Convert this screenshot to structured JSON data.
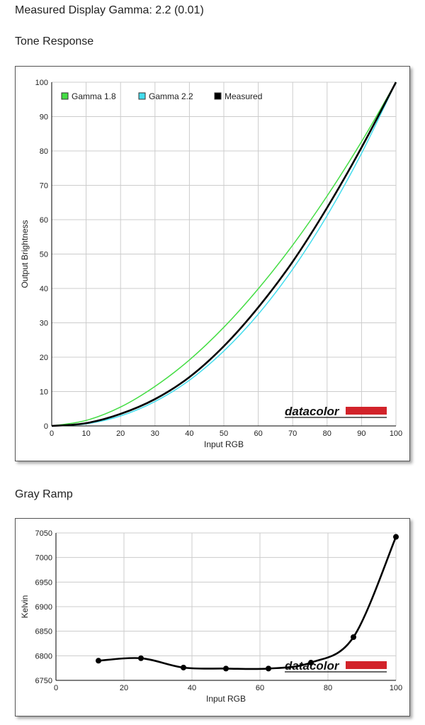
{
  "page": {
    "title": "Measured Display Gamma: 2.2 (0.01)",
    "tone_heading": "Tone Response",
    "gray_heading": "Gray Ramp"
  },
  "watermark": "datacolor",
  "colors": {
    "gamma18": "#44dd44",
    "gamma22": "#44ddee",
    "measured": "#000000",
    "grid": "#cccccc",
    "brand_red": "#d2232a"
  },
  "chart_data": [
    {
      "type": "line",
      "xlabel": "Input RGB",
      "ylabel": "Output Brightness",
      "xlim": [
        0,
        100
      ],
      "ylim": [
        0,
        100
      ],
      "xticks": [
        0,
        10,
        20,
        30,
        40,
        50,
        60,
        70,
        80,
        90,
        100
      ],
      "yticks": [
        0,
        10,
        20,
        30,
        40,
        50,
        60,
        70,
        80,
        90,
        100
      ],
      "grid": true,
      "legend": "top-left",
      "x": [
        0,
        10,
        20,
        30,
        40,
        50,
        60,
        70,
        80,
        90,
        100
      ],
      "series": [
        {
          "name": "Gamma 1.8",
          "values": [
            0,
            1.6,
            5.5,
            11.5,
            19.2,
            28.7,
            39.9,
            52.6,
            66.9,
            82.7,
            100
          ]
        },
        {
          "name": "Gamma 2.2",
          "values": [
            0,
            0.6,
            2.9,
            7.1,
            13.3,
            21.8,
            32.5,
            45.6,
            61.2,
            79.3,
            100
          ]
        },
        {
          "name": "Measured",
          "values": [
            0,
            0.8,
            3.5,
            7.8,
            14.2,
            23.2,
            34.5,
            47.8,
            63.5,
            81.0,
            100
          ]
        }
      ]
    },
    {
      "type": "line",
      "xlabel": "Input RGB",
      "ylabel": "Kelvin",
      "xlim": [
        0,
        100
      ],
      "ylim": [
        6750,
        7050
      ],
      "xticks": [
        0,
        20,
        40,
        60,
        80,
        100
      ],
      "yticks": [
        6750,
        6800,
        6850,
        6900,
        6950,
        7000,
        7050
      ],
      "grid": true,
      "x": [
        12.5,
        25,
        37.5,
        50,
        62.5,
        75,
        87.5,
        100
      ],
      "values": [
        6790,
        6795,
        6776,
        6774,
        6774,
        6786,
        6838,
        7042
      ]
    }
  ]
}
